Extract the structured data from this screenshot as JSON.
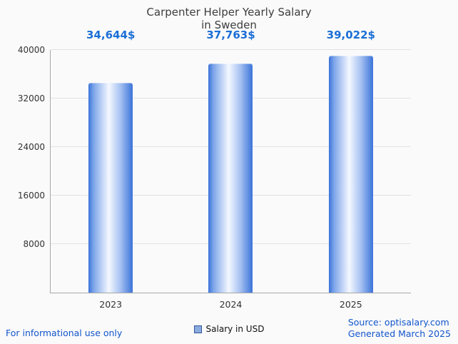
{
  "header": {
    "title_line1": "Carpenter Helper Yearly Salary",
    "title_line2": "in Sweden"
  },
  "chart_data": {
    "type": "bar",
    "title": "Carpenter Helper Yearly Salary in Sweden",
    "categories": [
      "2023",
      "2024",
      "2025"
    ],
    "values": [
      34644,
      37763,
      39022
    ],
    "value_labels": [
      "34,644$",
      "37,763$",
      "39,022$"
    ],
    "xlabel": "",
    "ylabel": "",
    "ylim": [
      0,
      40000
    ],
    "yticks": [
      8000,
      16000,
      24000,
      32000,
      40000
    ],
    "grid": true,
    "legend_position": "bottom",
    "series_name": "Salary in USD",
    "bar_color": "#3b74d9",
    "value_label_color": "#1b6fd6"
  },
  "legend": {
    "label": "Salary in USD"
  },
  "footer": {
    "left_note": "For informational use only",
    "source": "Source: optisalary.com",
    "generated": "Generated March 2025"
  }
}
